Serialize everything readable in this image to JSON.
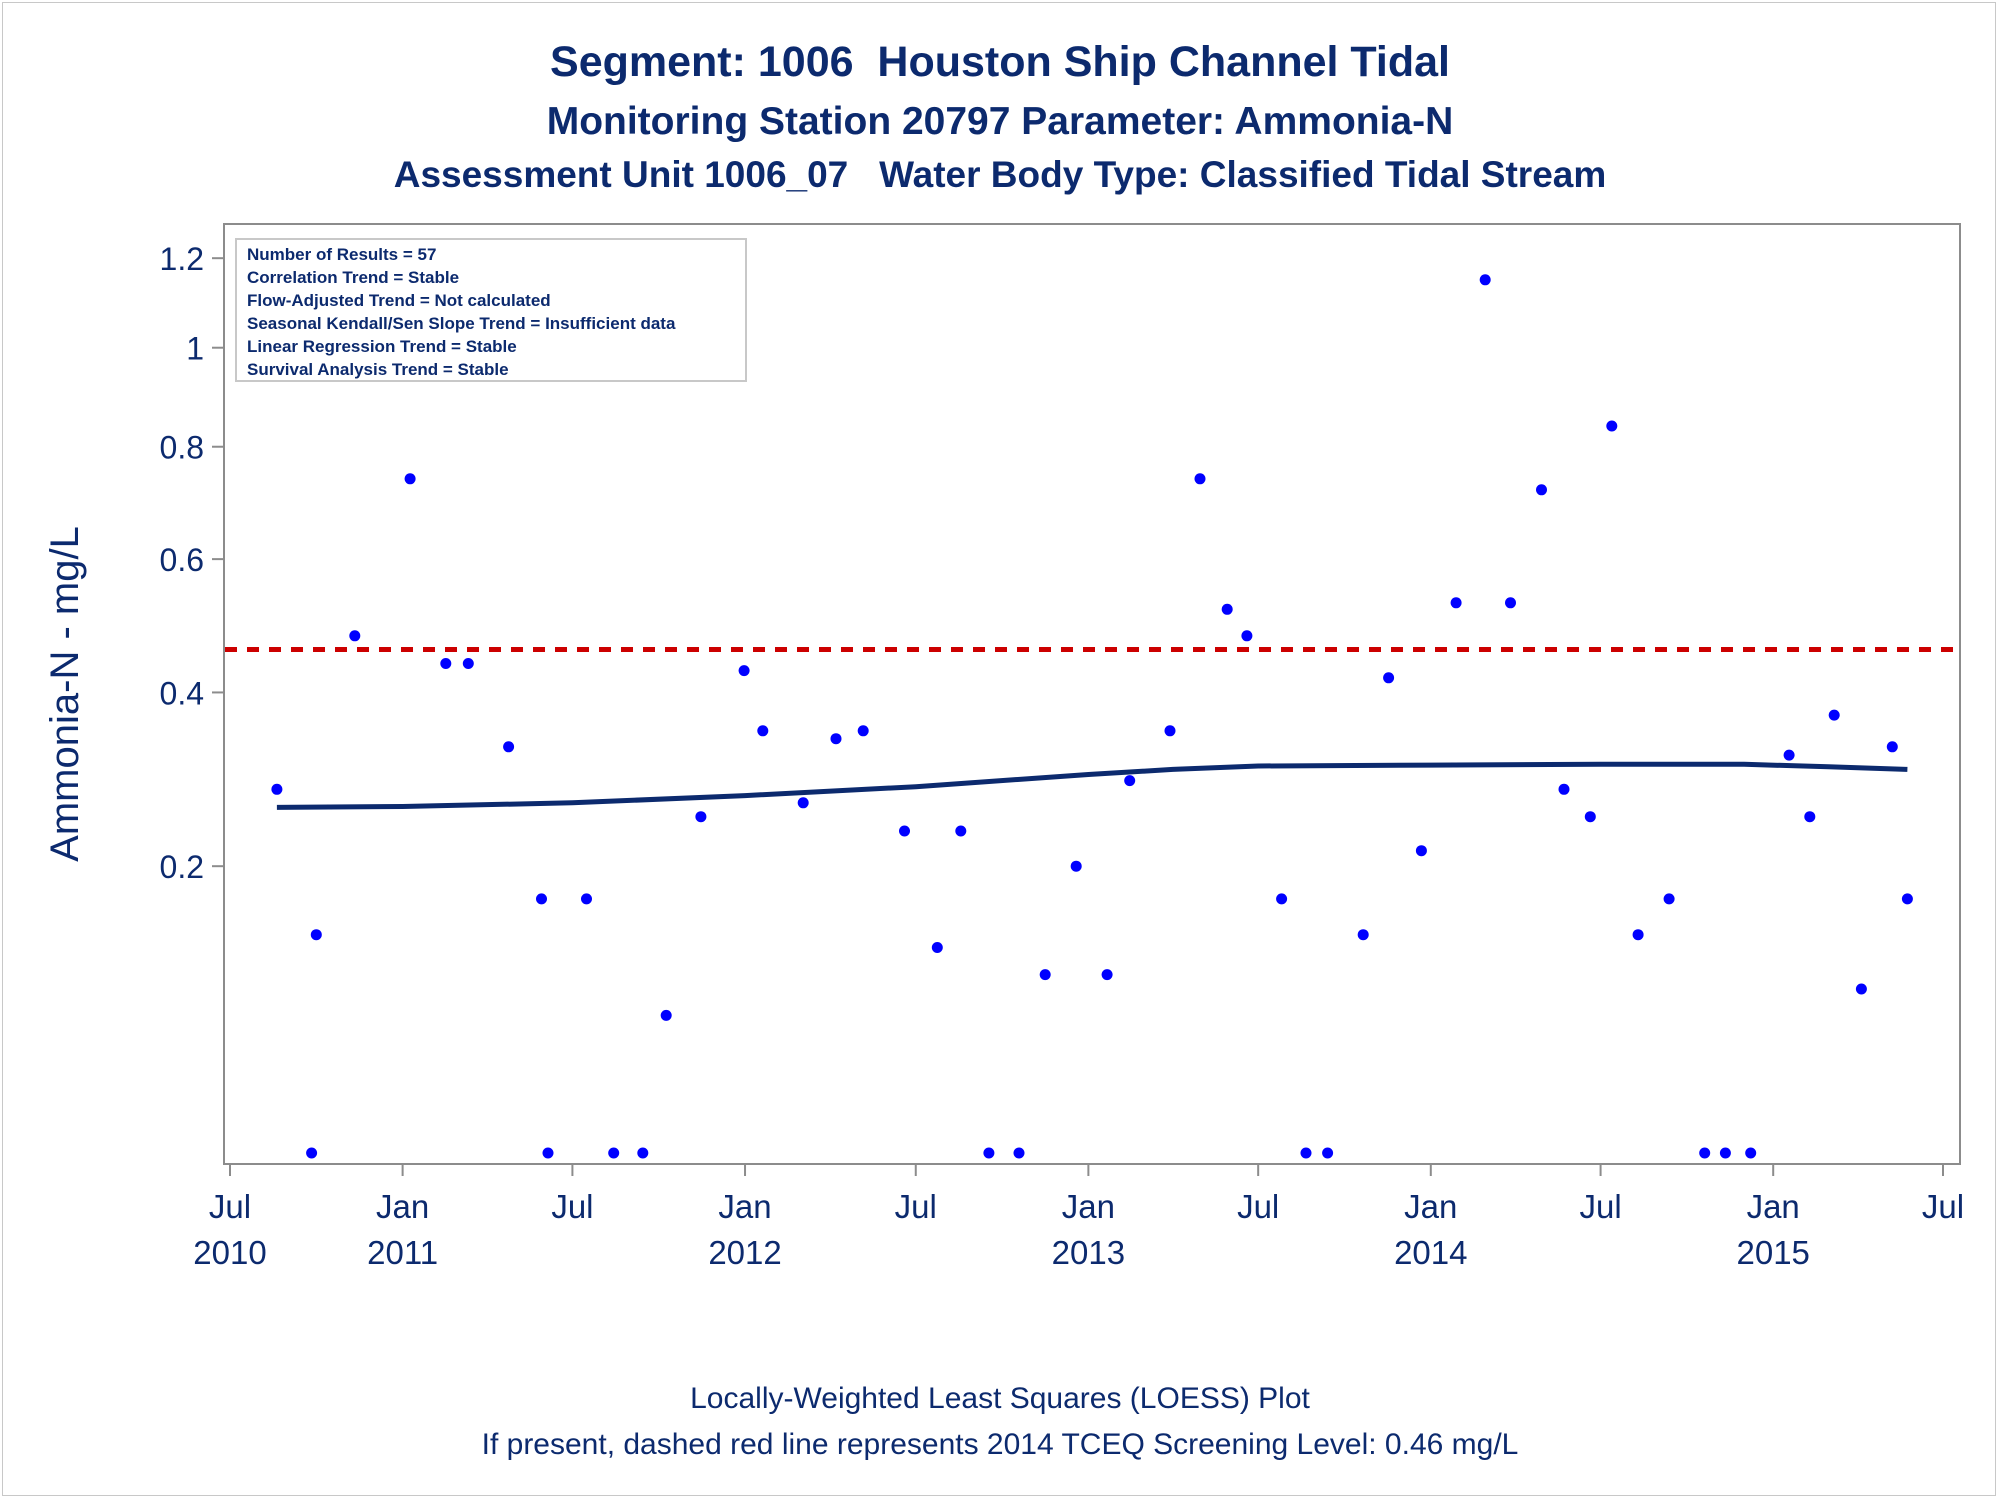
{
  "titles": {
    "line1": "Segment: 1006  Houston Ship Channel Tidal",
    "line2": "Monitoring Station 20797 Parameter: Ammonia-N",
    "line3": "Assessment Unit 1006_07   Water Body Type: Classified Tidal Stream"
  },
  "footer": {
    "line1": "Locally-Weighted Least Squares (LOESS) Plot",
    "line2": "If present, dashed red line represents 2014 TCEQ Screening Level: 0.46 mg/L"
  },
  "stats_box": [
    "Number of Results = 57",
    "Correlation Trend = Stable",
    "Flow-Adjusted Trend = Not calculated",
    "Seasonal Kendall/Sen Slope Trend = Insufficient data",
    "Linear Regression Trend = Stable",
    "Survival Analysis Trend = Stable"
  ],
  "colors": {
    "text": "#0c2a6e",
    "points": "#0000ff",
    "loess_line": "#0c2a6e",
    "screening_line": "#cc0000",
    "axis": "#8c8c8c"
  },
  "chart_data": {
    "type": "scatter",
    "xlabel": "",
    "ylabel": "Ammonia-N - mg/L",
    "y_scale": "sqrt",
    "ylim": [
      0.02,
      1.25
    ],
    "xlim": [
      "2010-07-01",
      "2015-07-01"
    ],
    "x_ticks": [
      {
        "date": "2010-07-01",
        "label1": "Jul",
        "label2": "2010"
      },
      {
        "date": "2011-01-01",
        "label1": "Jan",
        "label2": "2011"
      },
      {
        "date": "2011-07-01",
        "label1": "Jul",
        "label2": ""
      },
      {
        "date": "2012-01-01",
        "label1": "Jan",
        "label2": "2012"
      },
      {
        "date": "2012-07-01",
        "label1": "Jul",
        "label2": ""
      },
      {
        "date": "2013-01-01",
        "label1": "Jan",
        "label2": "2013"
      },
      {
        "date": "2013-07-01",
        "label1": "Jul",
        "label2": ""
      },
      {
        "date": "2014-01-01",
        "label1": "Jan",
        "label2": "2014"
      },
      {
        "date": "2014-07-01",
        "label1": "Jul",
        "label2": ""
      },
      {
        "date": "2015-01-01",
        "label1": "Jan",
        "label2": "2015"
      },
      {
        "date": "2015-07-01",
        "label1": "Jul",
        "label2": ""
      }
    ],
    "y_ticks": [
      {
        "value": 0.2,
        "label": "0.2"
      },
      {
        "value": 0.4,
        "label": "0.4"
      },
      {
        "value": 0.6,
        "label": "0.6"
      },
      {
        "value": 0.8,
        "label": "0.8"
      },
      {
        "value": 1.0,
        "label": "1"
      },
      {
        "value": 1.2,
        "label": "1.2"
      }
    ],
    "screening_level": 0.46,
    "series": [
      {
        "type": "scatter",
        "points": [
          {
            "x": "2010-08-20",
            "y": 0.28
          },
          {
            "x": "2010-09-26",
            "y": 0.02
          },
          {
            "x": "2010-10-01",
            "y": 0.14
          },
          {
            "x": "2010-11-11",
            "y": 0.48
          },
          {
            "x": "2011-01-09",
            "y": 0.74
          },
          {
            "x": "2011-02-16",
            "y": 0.44
          },
          {
            "x": "2011-03-12",
            "y": 0.44
          },
          {
            "x": "2011-04-24",
            "y": 0.33
          },
          {
            "x": "2011-05-29",
            "y": 0.17
          },
          {
            "x": "2011-06-05",
            "y": 0.02
          },
          {
            "x": "2011-07-16",
            "y": 0.17
          },
          {
            "x": "2011-08-14",
            "y": 0.02
          },
          {
            "x": "2011-09-14",
            "y": 0.02
          },
          {
            "x": "2011-10-09",
            "y": 0.083
          },
          {
            "x": "2011-11-15",
            "y": 0.25
          },
          {
            "x": "2011-12-31",
            "y": 0.43
          },
          {
            "x": "2012-01-20",
            "y": 0.35
          },
          {
            "x": "2012-03-03",
            "y": 0.265
          },
          {
            "x": "2012-04-07",
            "y": 0.34
          },
          {
            "x": "2012-05-06",
            "y": 0.35
          },
          {
            "x": "2012-06-19",
            "y": 0.235
          },
          {
            "x": "2012-07-24",
            "y": 0.13
          },
          {
            "x": "2012-08-18",
            "y": 0.235
          },
          {
            "x": "2012-09-17",
            "y": 0.02
          },
          {
            "x": "2012-10-19",
            "y": 0.02
          },
          {
            "x": "2012-11-16",
            "y": 0.11
          },
          {
            "x": "2012-12-19",
            "y": 0.2
          },
          {
            "x": "2013-01-21",
            "y": 0.11
          },
          {
            "x": "2013-02-14",
            "y": 0.29
          },
          {
            "x": "2013-03-29",
            "y": 0.35
          },
          {
            "x": "2013-04-30",
            "y": 0.74
          },
          {
            "x": "2013-05-29",
            "y": 0.52
          },
          {
            "x": "2013-06-19",
            "y": 0.48
          },
          {
            "x": "2013-07-26",
            "y": 0.17
          },
          {
            "x": "2013-08-21",
            "y": 0.02
          },
          {
            "x": "2013-09-13",
            "y": 0.02
          },
          {
            "x": "2013-10-21",
            "y": 0.14
          },
          {
            "x": "2013-11-17",
            "y": 0.42
          },
          {
            "x": "2013-12-22",
            "y": 0.215
          },
          {
            "x": "2014-01-28",
            "y": 0.53
          },
          {
            "x": "2014-02-28",
            "y": 1.15
          },
          {
            "x": "2014-03-27",
            "y": 0.53
          },
          {
            "x": "2014-04-29",
            "y": 0.72
          },
          {
            "x": "2014-05-23",
            "y": 0.28
          },
          {
            "x": "2014-06-20",
            "y": 0.25
          },
          {
            "x": "2014-07-13",
            "y": 0.84
          },
          {
            "x": "2014-08-10",
            "y": 0.14
          },
          {
            "x": "2014-09-12",
            "y": 0.17
          },
          {
            "x": "2014-10-20",
            "y": 0.02
          },
          {
            "x": "2014-11-11",
            "y": 0.02
          },
          {
            "x": "2014-12-08",
            "y": 0.02
          },
          {
            "x": "2015-01-18",
            "y": 0.32
          },
          {
            "x": "2015-02-09",
            "y": 0.25
          },
          {
            "x": "2015-03-07",
            "y": 0.37
          },
          {
            "x": "2015-04-05",
            "y": 0.1
          },
          {
            "x": "2015-05-08",
            "y": 0.33
          },
          {
            "x": "2015-05-24",
            "y": 0.17
          }
        ]
      },
      {
        "type": "line",
        "points": [
          {
            "x": "2010-08-20",
            "y": 0.26
          },
          {
            "x": "2011-01-01",
            "y": 0.261
          },
          {
            "x": "2011-07-01",
            "y": 0.265
          },
          {
            "x": "2012-01-01",
            "y": 0.273
          },
          {
            "x": "2012-07-01",
            "y": 0.283
          },
          {
            "x": "2013-01-01",
            "y": 0.297
          },
          {
            "x": "2013-04-01",
            "y": 0.303
          },
          {
            "x": "2013-07-01",
            "y": 0.307
          },
          {
            "x": "2014-01-01",
            "y": 0.308
          },
          {
            "x": "2014-07-01",
            "y": 0.309
          },
          {
            "x": "2014-12-01",
            "y": 0.309
          },
          {
            "x": "2015-03-01",
            "y": 0.306
          },
          {
            "x": "2015-05-24",
            "y": 0.303
          }
        ]
      }
    ]
  }
}
